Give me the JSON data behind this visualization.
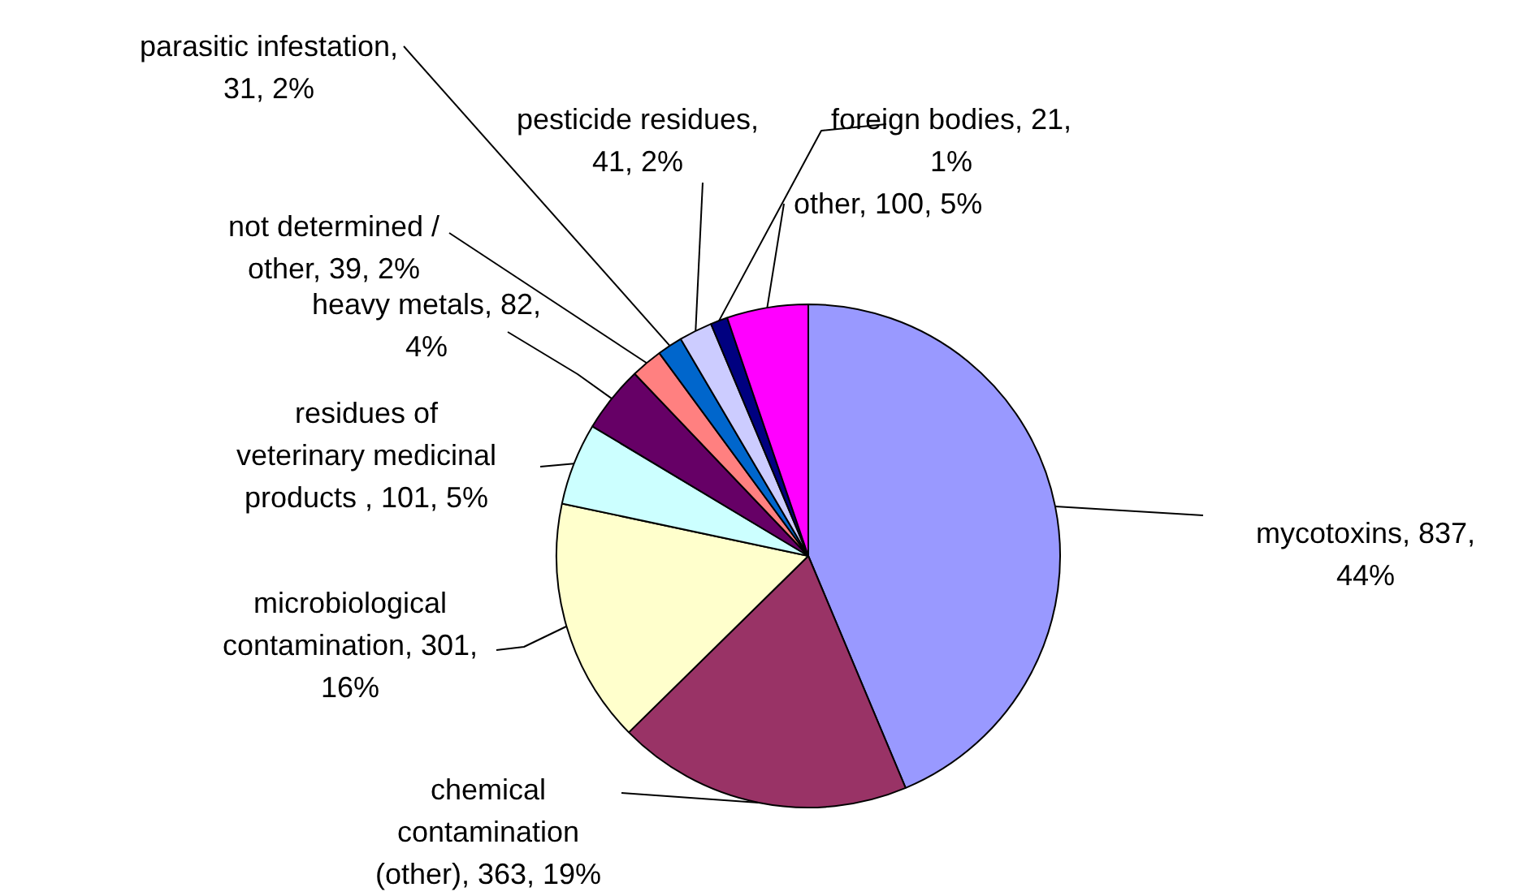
{
  "chart_data": {
    "type": "pie",
    "categories": [
      "mycotoxins",
      "chemical contamination (other)",
      "microbiological contamination",
      "residues of veterinary medicinal products",
      "heavy metals",
      "not determined / other",
      "parasitic infestation",
      "pesticide residues",
      "foreign bodies",
      "other"
    ],
    "values": [
      837,
      363,
      301,
      101,
      82,
      39,
      31,
      41,
      21,
      100
    ],
    "value_labels": [
      ", 837, 44%",
      ", 363, 19%",
      ", 301, 16%",
      " , 101, 5%",
      ", 82, 4%",
      ", 39, 2%",
      ", 31, 2%",
      ", 41, 2%",
      ", 21, 1%",
      ", 100, 5%"
    ],
    "colors": [
      "#9999ff",
      "#993366",
      "#ffffcc",
      "#ccffff",
      "#660066",
      "#ff8080",
      "#0066cc",
      "#ccccff",
      "#000080",
      "#ff00ff"
    ]
  }
}
